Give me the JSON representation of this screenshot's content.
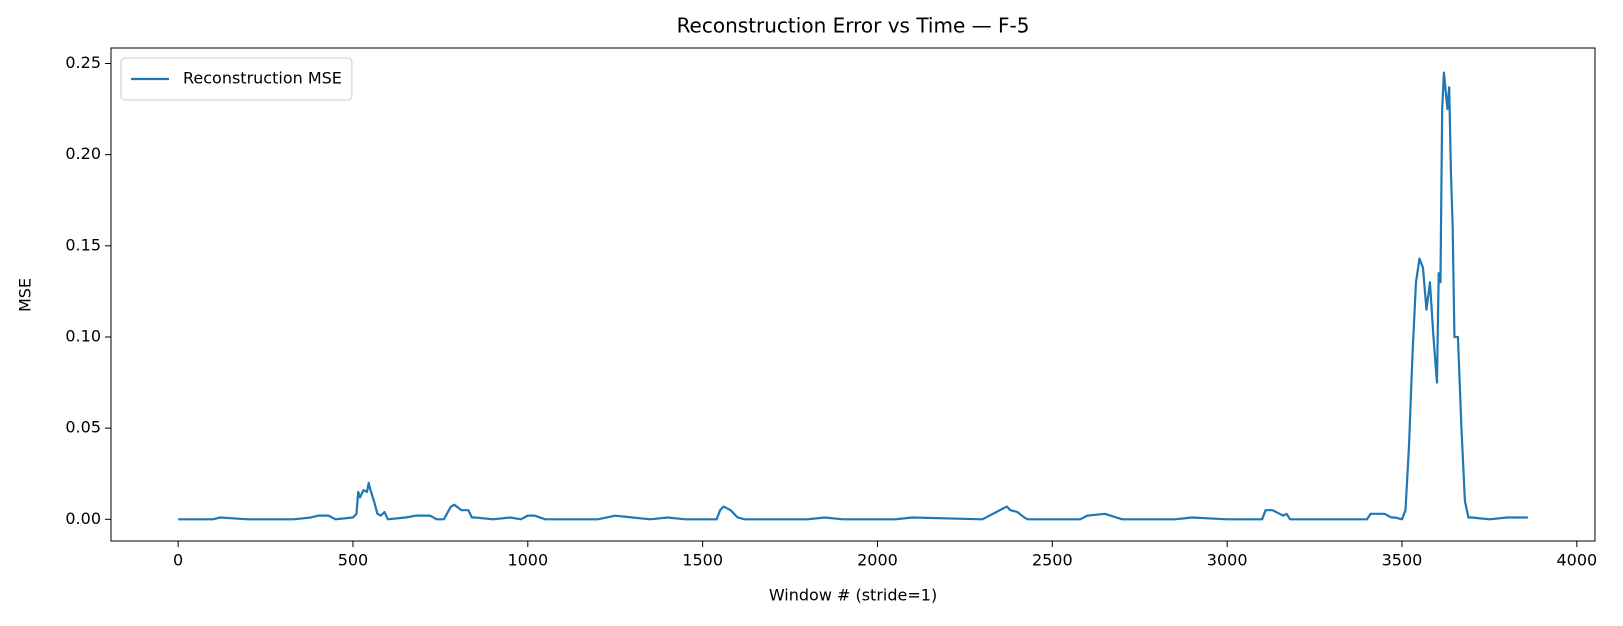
{
  "chart_data": {
    "type": "line",
    "title": "Reconstruction Error vs Time — F-5",
    "xlabel": "Window # (stride=1)",
    "ylabel": "MSE",
    "x": [
      0,
      100,
      120,
      200,
      330,
      380,
      400,
      430,
      450,
      500,
      510,
      515,
      520,
      530,
      540,
      545,
      550,
      560,
      570,
      580,
      590,
      600,
      650,
      680,
      700,
      720,
      740,
      760,
      780,
      790,
      810,
      830,
      840,
      850,
      900,
      950,
      980,
      1000,
      1020,
      1050,
      1200,
      1250,
      1300,
      1350,
      1400,
      1450,
      1540,
      1550,
      1560,
      1580,
      1600,
      1620,
      1800,
      1850,
      1900,
      2050,
      2100,
      2300,
      2360,
      2370,
      2380,
      2400,
      2420,
      2430,
      2580,
      2600,
      2650,
      2700,
      2850,
      2900,
      3000,
      3100,
      3110,
      3130,
      3150,
      3160,
      3170,
      3180,
      3400,
      3410,
      3450,
      3470,
      3480,
      3500,
      3510,
      3520,
      3530,
      3540,
      3550,
      3560,
      3570,
      3580,
      3590,
      3600,
      3605,
      3610,
      3615,
      3620,
      3630,
      3635,
      3640,
      3645,
      3650,
      3660,
      3670,
      3680,
      3690,
      3700,
      3750,
      3800,
      3860
    ],
    "series": [
      {
        "name": "Reconstruction MSE",
        "color": "#1f77b4",
        "values": [
          0.0,
          0.0,
          0.001,
          0.0,
          0.0,
          0.001,
          0.002,
          0.002,
          0.0,
          0.001,
          0.003,
          0.015,
          0.012,
          0.016,
          0.015,
          0.02,
          0.016,
          0.01,
          0.003,
          0.002,
          0.004,
          0.0,
          0.001,
          0.002,
          0.002,
          0.002,
          0.0,
          0.0,
          0.007,
          0.008,
          0.005,
          0.005,
          0.001,
          0.001,
          0.0,
          0.001,
          0.0,
          0.002,
          0.002,
          0.0,
          0.0,
          0.002,
          0.001,
          0.0,
          0.001,
          0.0,
          0.0,
          0.005,
          0.007,
          0.005,
          0.001,
          0.0,
          0.0,
          0.001,
          0.0,
          0.0,
          0.001,
          0.0,
          0.006,
          0.007,
          0.005,
          0.004,
          0.001,
          0.0,
          0.0,
          0.002,
          0.003,
          0.0,
          0.0,
          0.001,
          0.0,
          0.0,
          0.005,
          0.005,
          0.003,
          0.002,
          0.003,
          0.0,
          0.0,
          0.003,
          0.003,
          0.001,
          0.001,
          0.0,
          0.005,
          0.04,
          0.09,
          0.13,
          0.143,
          0.138,
          0.115,
          0.13,
          0.1,
          0.075,
          0.135,
          0.13,
          0.225,
          0.245,
          0.225,
          0.237,
          0.19,
          0.16,
          0.1,
          0.1,
          0.05,
          0.01,
          0.001,
          0.001,
          0.0,
          0.001,
          0.001
        ]
      }
    ],
    "xlim": [
      -192,
      4052
    ],
    "ylim": [
      -0.0119,
      0.2585
    ],
    "xticks": [
      0,
      500,
      1000,
      1500,
      2000,
      2500,
      3000,
      3500,
      4000
    ],
    "yticks": [
      {
        "value": 0,
        "label": "0.00"
      },
      0.05,
      {
        "value": 0.1,
        "label": "0.10"
      },
      0.15,
      {
        "value": 0.2,
        "label": "0.20"
      },
      0.25
    ],
    "legend": "upper left"
  }
}
